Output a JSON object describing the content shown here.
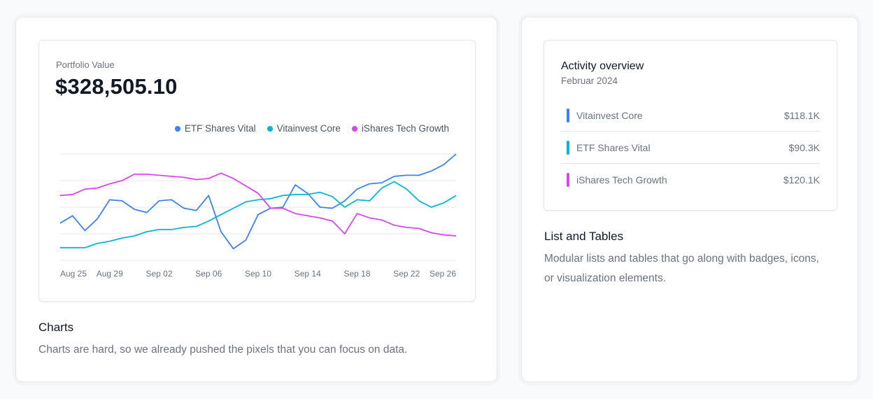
{
  "charts_card": {
    "portfolio_label": "Portfolio Value",
    "portfolio_value": "$328,505.10",
    "title": "Charts",
    "description": "Charts are hard, so we already pushed the pixels that you can focus on data."
  },
  "lists_card": {
    "activity_title": "Activity overview",
    "activity_subtitle": "Februar 2024",
    "items": [
      {
        "name": "Vitainvest Core",
        "amount": "$118.1K",
        "color": "#3b82f6"
      },
      {
        "name": "ETF Shares Vital",
        "amount": "$90.3K",
        "color": "#06b6d4"
      },
      {
        "name": "iShares Tech Growth",
        "amount": "$120.1K",
        "color": "#d946ef"
      }
    ],
    "title": "List and Tables",
    "description": "Modular lists and tables that go along with badges, icons, or visualization elements."
  },
  "chart_data": {
    "type": "line",
    "title": "",
    "xlabel": "",
    "ylabel": "",
    "x_ticks": [
      "Aug 25",
      "Aug 29",
      "Sep 02",
      "Sep 06",
      "Sep 10",
      "Sep 14",
      "Sep 18",
      "Sep 22",
      "Sep 26"
    ],
    "ylim": [
      0,
      100
    ],
    "grid": true,
    "legend": "top-right",
    "series": [
      {
        "name": "ETF Shares Vital",
        "color": "#3b82f6",
        "values": [
          35,
          42,
          28,
          39,
          57,
          56,
          48,
          45,
          56,
          57,
          49,
          47,
          61,
          27,
          11,
          19,
          43,
          49,
          50,
          71,
          63,
          50,
          49,
          56,
          67,
          72,
          73,
          79,
          80,
          80,
          84,
          90,
          100
        ]
      },
      {
        "name": "Vitainvest Core",
        "color": "#06b6d4",
        "values": [
          12,
          12,
          12,
          16,
          18,
          21,
          23,
          27,
          29,
          29,
          31,
          32,
          37,
          43,
          49,
          55,
          57,
          58,
          61,
          62,
          62,
          64,
          60,
          50,
          57,
          56,
          68,
          74,
          67,
          56,
          50,
          54,
          61
        ]
      },
      {
        "name": "iShares Tech Growth",
        "color": "#d946ef",
        "values": [
          61,
          62,
          67,
          68,
          72,
          75,
          81,
          81,
          80,
          79,
          78,
          76,
          77,
          82,
          77,
          70,
          63,
          49,
          49,
          44,
          42,
          40,
          37,
          25,
          44,
          40,
          38,
          33,
          31,
          30,
          26,
          24,
          23
        ]
      }
    ]
  }
}
